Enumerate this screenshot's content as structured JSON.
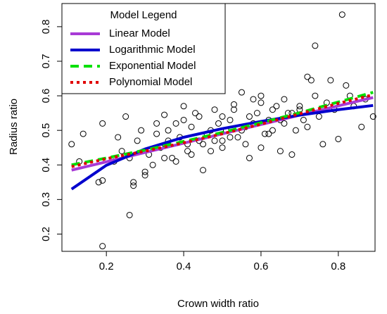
{
  "chart_data": {
    "type": "scatter",
    "x_label": "Crown width ratio",
    "y_label": "Radius ratio",
    "xlim": [
      0.085,
      0.895
    ],
    "ylim": [
      0.15,
      0.867
    ],
    "xticks": [
      0.2,
      0.4,
      0.6,
      0.8
    ],
    "yticks": [
      0.2,
      0.3,
      0.4,
      0.5,
      0.6,
      0.7,
      0.8
    ],
    "points": {
      "x": [
        0.11,
        0.14,
        0.19,
        0.25,
        0.86,
        0.89,
        0.81,
        0.74,
        0.19,
        0.26,
        0.72,
        0.73,
        0.78,
        0.82,
        0.8,
        0.76,
        0.18,
        0.19,
        0.27,
        0.27,
        0.3,
        0.3,
        0.55,
        0.53,
        0.58,
        0.6,
        0.4,
        0.35,
        0.38,
        0.43,
        0.48,
        0.45,
        0.57,
        0.6,
        0.65,
        0.68,
        0.22,
        0.24,
        0.28,
        0.31,
        0.33,
        0.34,
        0.36,
        0.37,
        0.39,
        0.41,
        0.42,
        0.44,
        0.46,
        0.47,
        0.49,
        0.5,
        0.51,
        0.52,
        0.54,
        0.56,
        0.59,
        0.61,
        0.62,
        0.63,
        0.64,
        0.66,
        0.67,
        0.69,
        0.7,
        0.71,
        0.75,
        0.77,
        0.79,
        0.83,
        0.84,
        0.87,
        0.32,
        0.35,
        0.38,
        0.42,
        0.45,
        0.48,
        0.5,
        0.52,
        0.55,
        0.58,
        0.62,
        0.65,
        0.68,
        0.72,
        0.29,
        0.26,
        0.33,
        0.4,
        0.44,
        0.47,
        0.53,
        0.57,
        0.6,
        0.63,
        0.66,
        0.7,
        0.74,
        0.36,
        0.41,
        0.5,
        0.56,
        0.23,
        0.13
      ],
      "y": [
        0.46,
        0.49,
        0.52,
        0.54,
        0.51,
        0.54,
        0.835,
        0.745,
        0.165,
        0.255,
        0.655,
        0.645,
        0.645,
        0.63,
        0.475,
        0.46,
        0.35,
        0.355,
        0.34,
        0.35,
        0.37,
        0.38,
        0.61,
        0.575,
        0.59,
        0.6,
        0.57,
        0.545,
        0.52,
        0.55,
        0.56,
        0.385,
        0.42,
        0.45,
        0.44,
        0.43,
        0.41,
        0.44,
        0.47,
        0.43,
        0.49,
        0.45,
        0.5,
        0.42,
        0.48,
        0.46,
        0.51,
        0.47,
        0.49,
        0.44,
        0.52,
        0.47,
        0.5,
        0.53,
        0.48,
        0.51,
        0.55,
        0.49,
        0.53,
        0.5,
        0.57,
        0.52,
        0.55,
        0.5,
        0.56,
        0.53,
        0.54,
        0.58,
        0.56,
        0.6,
        0.57,
        0.59,
        0.4,
        0.42,
        0.41,
        0.43,
        0.46,
        0.47,
        0.45,
        0.48,
        0.5,
        0.52,
        0.49,
        0.53,
        0.55,
        0.51,
        0.5,
        0.42,
        0.52,
        0.53,
        0.54,
        0.5,
        0.56,
        0.54,
        0.58,
        0.56,
        0.59,
        0.57,
        0.6,
        0.47,
        0.44,
        0.54,
        0.46,
        0.48,
        0.41
      ]
    },
    "lines": {
      "legend_title": "Model Legend",
      "x": [
        0.11,
        0.2,
        0.3,
        0.4,
        0.5,
        0.6,
        0.7,
        0.8,
        0.89
      ],
      "series": [
        {
          "name": "Linear Model",
          "color": "#a83ad6",
          "dash": "solid",
          "values": [
            0.385,
            0.409,
            0.436,
            0.463,
            0.49,
            0.517,
            0.544,
            0.571,
            0.595
          ]
        },
        {
          "name": "Logarithmic Model",
          "color": "#0000cd",
          "dash": "solid",
          "values": [
            0.33,
            0.399,
            0.446,
            0.48,
            0.505,
            0.526,
            0.544,
            0.56,
            0.572
          ]
        },
        {
          "name": "Exponential Model",
          "color": "#00e000",
          "dash": "dashed",
          "values": [
            0.4,
            0.42,
            0.443,
            0.468,
            0.494,
            0.522,
            0.551,
            0.582,
            0.61
          ]
        },
        {
          "name": "Polynomial Model",
          "color": "#e00000",
          "dash": "dotted",
          "values": [
            0.395,
            0.418,
            0.44,
            0.464,
            0.49,
            0.518,
            0.548,
            0.578,
            0.603
          ]
        }
      ]
    }
  }
}
